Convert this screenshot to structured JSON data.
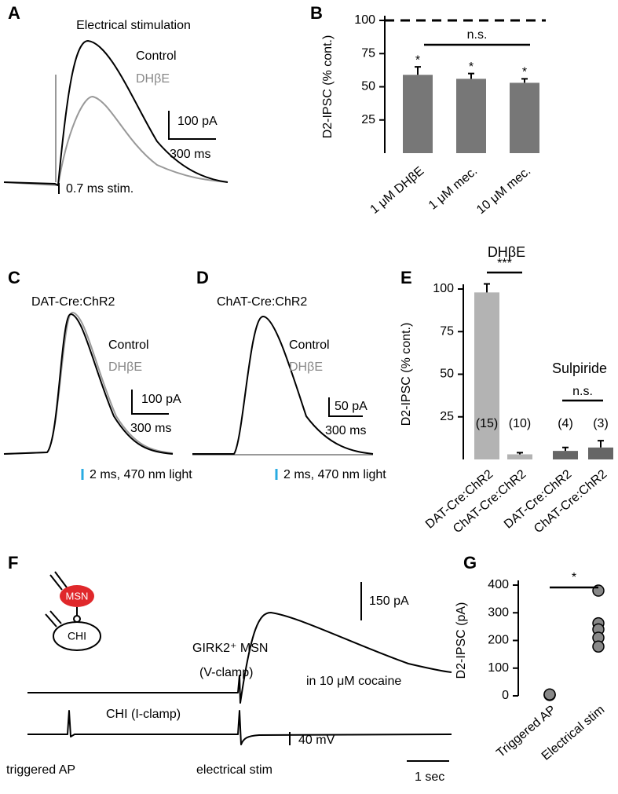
{
  "chart_data": [
    {
      "panel": "B",
      "type": "bar",
      "ylabel": "D2-IPSC (% cont.)",
      "categories": [
        "1 μM DHβE",
        "1 μM mec.",
        "10 μM mec."
      ],
      "values": [
        59,
        56,
        53
      ],
      "errors": [
        6,
        4,
        3
      ],
      "color": "#777777",
      "significance": [
        "*",
        "*",
        "*"
      ],
      "reference_line": 100,
      "comparison": "n.s.",
      "ylim": [
        0,
        100
      ],
      "yticks": [
        25,
        50,
        75,
        100
      ]
    },
    {
      "panel": "E",
      "type": "bar",
      "ylabel": "D2-IPSC (% cont.)",
      "categories": [
        "DAT-Cre:ChR2",
        "ChAT-Cre:ChR2",
        "DAT-Cre:ChR2",
        "ChAT-Cre:ChR2"
      ],
      "values": [
        98,
        3,
        5,
        7
      ],
      "errors": [
        5,
        1,
        2,
        4
      ],
      "colors": [
        "#b3b3b3",
        "#b3b3b3",
        "#666666",
        "#666666"
      ],
      "n_labels": [
        "(15)",
        "(10)",
        "(4)",
        "(3)"
      ],
      "groups": [
        {
          "label": "DHβE",
          "comparison": "***"
        },
        {
          "label": "Sulpiride",
          "comparison": "n.s."
        }
      ],
      "ylim": [
        0,
        100
      ],
      "yticks": [
        25,
        50,
        75,
        100
      ]
    },
    {
      "panel": "G",
      "type": "strip",
      "ylabel": "D2-IPSC (pA)",
      "categories": [
        "Triggered AP",
        "Electrical stim"
      ],
      "values": [
        [
          3,
          4,
          5
        ],
        [
          380,
          262,
          240,
          210,
          178
        ]
      ],
      "color": "#888888",
      "comparison": "*",
      "ylim": [
        0,
        400
      ],
      "yticks": [
        0,
        100,
        200,
        300,
        400
      ]
    }
  ],
  "traces": {
    "A": {
      "panel": "A",
      "title": "Electrical stimulation",
      "legend": [
        "Control",
        "DHβE"
      ],
      "scale_current": "100 pA",
      "scale_time": "300 ms",
      "stimulus": "0.7 ms stim."
    },
    "C": {
      "panel": "C",
      "title": "DAT-Cre:ChR2",
      "legend": [
        "Control",
        "DHβE"
      ],
      "scale_current": "100 pA",
      "scale_time": "300 ms",
      "stimulus": "2 ms, 470 nm light"
    },
    "D": {
      "panel": "D",
      "title": "ChAT-Cre:ChR2",
      "legend": [
        "Control",
        "DHβE"
      ],
      "scale_current": "50 pA",
      "scale_time": "300 ms",
      "stimulus": "2 ms, 470 nm light"
    },
    "F": {
      "panel": "F",
      "cells": [
        "MSN",
        "CHI"
      ],
      "recording_top": "GIRK2⁺ MSN",
      "recording_top_mode": "(V-clamp)",
      "condition": "in 10 μM cocaine",
      "scale_current": "150 pA",
      "recording_bottom": "CHI (I-clamp)",
      "scale_voltage": "40 mV",
      "events": [
        "triggered AP",
        "electrical stim"
      ],
      "scale_time": "1 sec"
    }
  }
}
